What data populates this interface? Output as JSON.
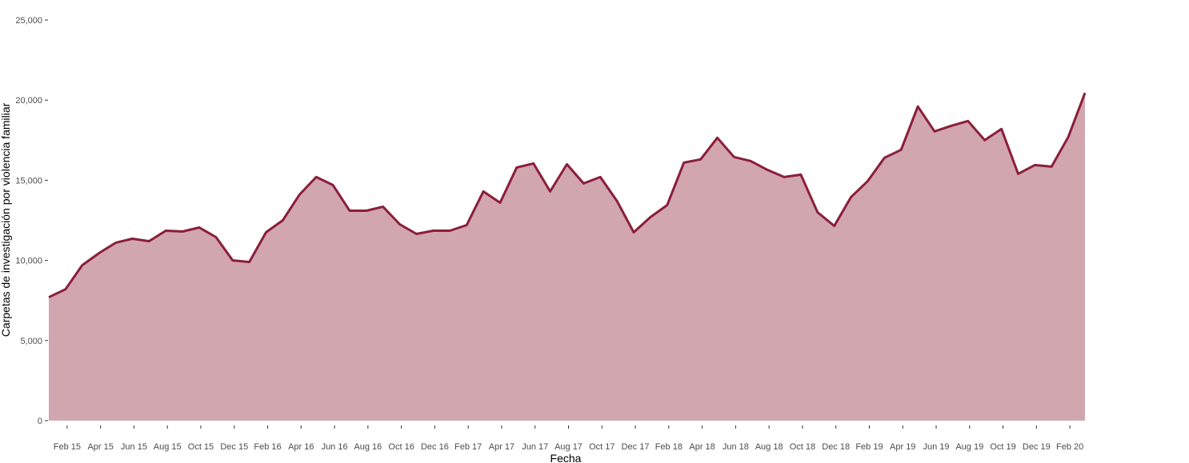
{
  "chart_data": {
    "type": "area",
    "title": "",
    "xlabel": "Fecha",
    "ylabel": "Carpetas de investigación por violencia familiar",
    "ylim": [
      0,
      25000
    ],
    "yticks": [
      0,
      5000,
      10000,
      15000,
      20000,
      25000
    ],
    "ytick_labels": [
      "0",
      "5,000",
      "10,000",
      "15,000",
      "20,000",
      "25,000"
    ],
    "xtick_labels": [
      "Feb 15",
      "Apr 15",
      "Jun 15",
      "Aug 15",
      "Oct 15",
      "Dec 15",
      "Feb 16",
      "Apr 16",
      "Jun 16",
      "Aug 16",
      "Oct 16",
      "Dec 16",
      "Feb 17",
      "Apr 17",
      "Jun 17",
      "Aug 17",
      "Oct 17",
      "Dec 17",
      "Feb 18",
      "Apr 18",
      "Jun 18",
      "Aug 18",
      "Oct 18",
      "Dec 18",
      "Feb 19",
      "Apr 19",
      "Jun 19",
      "Aug 19",
      "Oct 19",
      "Dec 19",
      "Feb 20"
    ],
    "grid": false,
    "legend": "none",
    "x_start_month": "Jan 15",
    "x": [
      "Jan 15",
      "Feb 15",
      "Mar 15",
      "Apr 15",
      "May 15",
      "Jun 15",
      "Jul 15",
      "Aug 15",
      "Sep 15",
      "Oct 15",
      "Nov 15",
      "Dec 15",
      "Jan 16",
      "Feb 16",
      "Mar 16",
      "Apr 16",
      "May 16",
      "Jun 16",
      "Jul 16",
      "Aug 16",
      "Sep 16",
      "Oct 16",
      "Nov 16",
      "Dec 16",
      "Jan 17",
      "Feb 17",
      "Mar 17",
      "Apr 17",
      "May 17",
      "Jun 17",
      "Jul 17",
      "Aug 17",
      "Sep 17",
      "Oct 17",
      "Nov 17",
      "Dec 17",
      "Jan 18",
      "Feb 18",
      "Mar 18",
      "Apr 18",
      "May 18",
      "Jun 18",
      "Jul 18",
      "Aug 18",
      "Sep 18",
      "Oct 18",
      "Nov 18",
      "Dec 18",
      "Jan 19",
      "Feb 19",
      "Mar 19",
      "Apr 19",
      "May 19",
      "Jun 19",
      "Jul 19",
      "Aug 19",
      "Sep 19",
      "Oct 19",
      "Nov 19",
      "Dec 19",
      "Jan 20",
      "Feb 20",
      "Mar 20"
    ],
    "series": [
      {
        "values": [
          7700,
          8200,
          9700,
          10450,
          11100,
          11350,
          11200,
          11850,
          11800,
          12050,
          11450,
          10000,
          9900,
          11750,
          12500,
          14100,
          15200,
          14700,
          13100,
          13100,
          13350,
          12250,
          11650,
          11850,
          11850,
          12200,
          14300,
          13600,
          15800,
          16050,
          14300,
          16000,
          14800,
          15200,
          13700,
          11750,
          12700,
          13450,
          16100,
          16300,
          17650,
          16450,
          16200,
          15650,
          15200,
          15350,
          13000,
          12150,
          13950,
          14950,
          16400,
          16900,
          19600,
          18050,
          18400,
          18700,
          17500,
          18200,
          15400,
          15950,
          15850,
          17700,
          20450
        ],
        "color": "#8b1e3a",
        "fill": "#d1a6af"
      }
    ]
  }
}
